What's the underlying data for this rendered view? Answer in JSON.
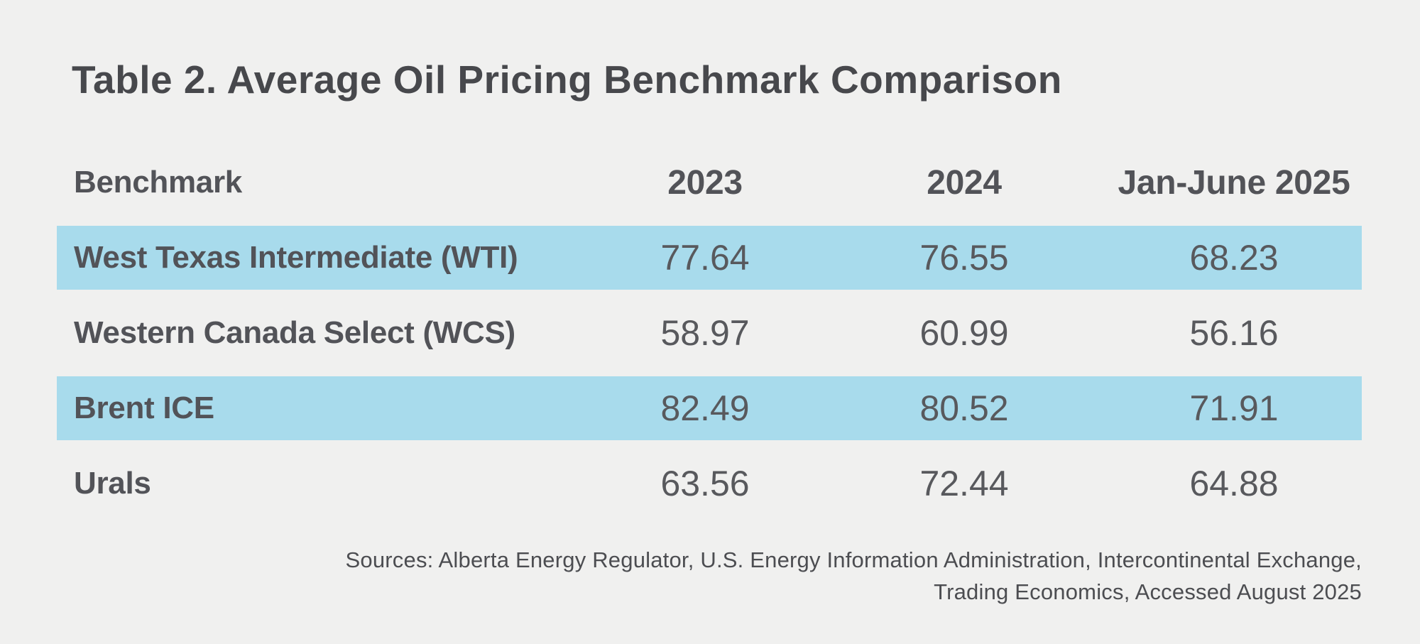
{
  "title": "Table 2. Average Oil Pricing Benchmark Comparison",
  "table": {
    "header": {
      "benchmark": "Benchmark",
      "col2023": "2023",
      "col2024": "2024",
      "col2025": "Jan-June 2025"
    },
    "rows": [
      {
        "benchmark": "West Texas Intermediate (WTI)",
        "v2023": "77.64",
        "v2024": "76.55",
        "v2025": "68.23",
        "highlighted": true
      },
      {
        "benchmark": "Western Canada Select (WCS)",
        "v2023": "58.97",
        "v2024": "60.99",
        "v2025": "56.16",
        "highlighted": false
      },
      {
        "benchmark": "Brent ICE",
        "v2023": "82.49",
        "v2024": "80.52",
        "v2025": "71.91",
        "highlighted": true
      },
      {
        "benchmark": "Urals",
        "v2023": "63.56",
        "v2024": "72.44",
        "v2025": "64.88",
        "highlighted": false
      }
    ]
  },
  "source_note": {
    "line1": "Sources: Alberta Energy Regulator, U.S. Energy Information Administration, Intercontinental Exchange,",
    "line2": "Trading Economics, Accessed August 2025"
  },
  "colors": {
    "background": "#f0f0ef",
    "row_highlight": "#a8dbec",
    "title_text": "#47484c",
    "body_text": "#525358"
  },
  "chart_data": {
    "type": "table",
    "title": "Table 2. Average Oil Pricing Benchmark Comparison",
    "columns": [
      "Benchmark",
      "2023",
      "2024",
      "Jan-June 2025"
    ],
    "rows": [
      {
        "benchmark": "West Texas Intermediate (WTI)",
        "values": [
          77.64,
          76.55,
          68.23
        ]
      },
      {
        "benchmark": "Western Canada Select (WCS)",
        "values": [
          58.97,
          60.99,
          56.16
        ]
      },
      {
        "benchmark": "Brent ICE",
        "values": [
          82.49,
          80.52,
          71.91
        ]
      },
      {
        "benchmark": "Urals",
        "values": [
          63.56,
          72.44,
          64.88
        ]
      }
    ],
    "highlighted_rows": [
      0,
      2
    ],
    "legend": "none",
    "grid": false,
    "source": "Sources: Alberta Energy Regulator, U.S. Energy Information Administration, Intercontinental Exchange, Trading Economics, Accessed August 2025"
  }
}
